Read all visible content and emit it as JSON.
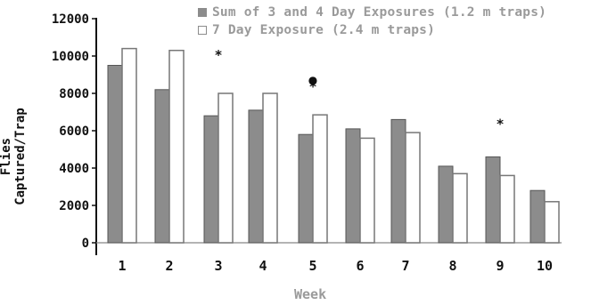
{
  "chart_data": {
    "type": "bar",
    "title": "",
    "xlabel": "Week",
    "ylabel": "Flies Captured/Trap",
    "ylim": [
      0,
      12000
    ],
    "yticks": [
      0,
      2000,
      4000,
      6000,
      8000,
      10000,
      12000
    ],
    "categories": [
      "1",
      "2",
      "3",
      "4",
      "5",
      "6",
      "7",
      "8",
      "9",
      "10"
    ],
    "series": [
      {
        "name": "Sum of 3 and 4 Day Exposures (1.2 m traps)",
        "color": "#8c8c8c",
        "values": [
          9500,
          8200,
          6800,
          7100,
          5800,
          6100,
          6600,
          4100,
          4600,
          2800
        ]
      },
      {
        "name": "7 Day Exposure (2.4 m traps)",
        "color": "#ffffff",
        "values": [
          10400,
          10300,
          8000,
          8000,
          6850,
          5600,
          5900,
          3700,
          3600,
          2200
        ]
      }
    ],
    "annotations": [
      {
        "week": "3",
        "symbol": "*",
        "y": 10100
      },
      {
        "week": "5",
        "symbol": "●",
        "y": 8800
      },
      {
        "week": "5",
        "symbol": "*",
        "y": 8400
      },
      {
        "week": "9",
        "symbol": "*",
        "y": 6400
      }
    ],
    "legend_position": "top-right",
    "grid": false
  }
}
